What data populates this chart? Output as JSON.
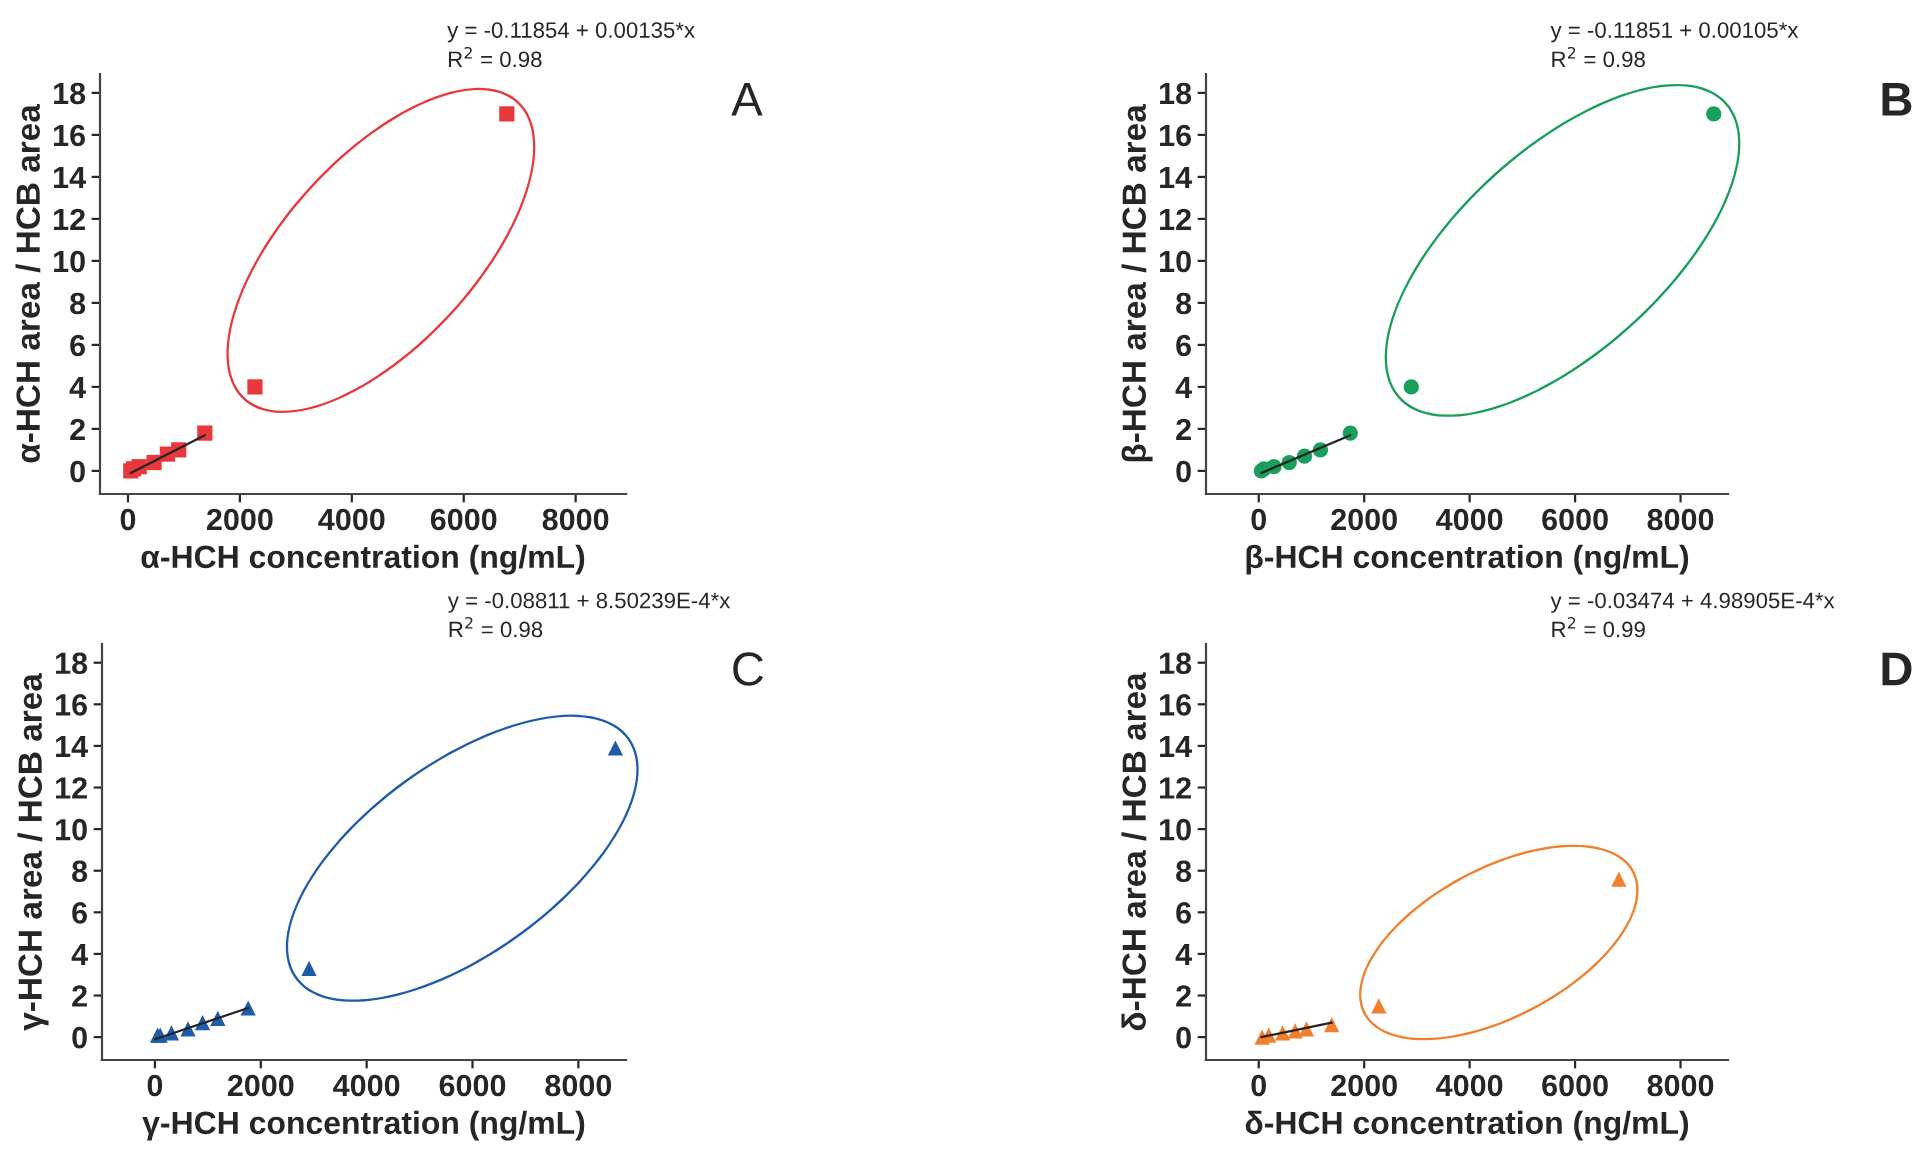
{
  "chart_data": [
    {
      "type": "scatter",
      "xlabel": "α-HCH concentration (ng/mL)",
      "ylabel": "α-HCH area / HCB area",
      "xlim": [
        -500,
        8900
      ],
      "ylim": [
        -1.1,
        18.9
      ],
      "xticks": [
        0,
        2000,
        4000,
        6000,
        8000
      ],
      "yticks": [
        0,
        2,
        4,
        6,
        8,
        10,
        12,
        14,
        16,
        18
      ],
      "grid": false,
      "annotations": [
        "y = -0.11854 + 0.00135*x",
        "R$^{2}$ = 0.98",
        "A"
      ],
      "series": [
        {
          "marker": "square",
          "color": "#e8383d",
          "x": [
            50,
            100,
            200,
            466,
            704,
            907,
            1373,
            2269,
            6770
          ],
          "values": [
            0.0,
            0.1,
            0.2,
            0.4,
            0.8,
            1.0,
            1.8,
            4.0,
            17.0
          ]
        },
        {
          "type": "line",
          "marker": "none",
          "color": "#222222",
          "x": [
            50,
            1373
          ],
          "values": [
            -0.1,
            1.7
          ]
        }
      ]
    },
    {
      "type": "scatter",
      "xlabel": "β-HCH concentration (ng/mL)",
      "ylabel": "β-HCH area / HCB area",
      "xlim": [
        -1000,
        8900
      ],
      "ylim": [
        -1.1,
        18.9
      ],
      "xticks": [
        0,
        2000,
        4000,
        6000,
        8000
      ],
      "yticks": [
        0,
        2,
        4,
        6,
        8,
        10,
        12,
        14,
        16,
        18
      ],
      "grid": false,
      "annotations": [
        "y = -0.11851 + 0.00105*x",
        "R$^{2}$ = 0.98",
        "B"
      ],
      "series": [
        {
          "marker": "circle",
          "color": "#1a9e5c",
          "x": [
            50,
            100,
            289,
            579,
            868,
            1170,
            1736,
            2893,
            8630
          ],
          "values": [
            0.0,
            0.1,
            0.2,
            0.4,
            0.7,
            1.0,
            1.8,
            4.0,
            17.0
          ]
        },
        {
          "type": "line",
          "marker": "none",
          "color": "#222222",
          "x": [
            50,
            1736
          ],
          "values": [
            -0.1,
            1.7
          ]
        }
      ]
    },
    {
      "type": "scatter",
      "xlabel": "γ-HCH concentration (ng/mL)",
      "ylabel": "γ-HCH area / HCB area",
      "xlim": [
        -1000,
        8900
      ],
      "ylim": [
        -1.1,
        18.9
      ],
      "xticks": [
        0,
        2000,
        4000,
        6000,
        8000
      ],
      "yticks": [
        0,
        2,
        4,
        6,
        8,
        10,
        12,
        14,
        16,
        18
      ],
      "grid": false,
      "annotations": [
        "y = -0.08811 + 8.50239E-4*x",
        "R$^{2}$ = 0.98",
        "C"
      ],
      "series": [
        {
          "marker": "triangle",
          "color": "#1f5ca8",
          "x": [
            50,
            100,
            312,
            625,
            900,
            1188,
            1762,
            2912,
            8700
          ],
          "values": [
            0.1,
            0.1,
            0.2,
            0.4,
            0.7,
            0.9,
            1.4,
            3.3,
            13.9
          ]
        },
        {
          "type": "line",
          "marker": "none",
          "color": "#222222",
          "x": [
            0,
            1762
          ],
          "values": [
            -0.1,
            1.4
          ]
        }
      ]
    },
    {
      "type": "scatter",
      "xlabel": "δ-HCH concentration (ng/mL)",
      "ylabel": "δ-HCH area / HCB area",
      "xlim": [
        -1000,
        8900
      ],
      "ylim": [
        -1.1,
        18.9
      ],
      "xticks": [
        0,
        2000,
        4000,
        6000,
        8000
      ],
      "yticks": [
        0,
        2,
        4,
        6,
        8,
        10,
        12,
        14,
        16,
        18
      ],
      "grid": false,
      "annotations": [
        "y = -0.03474 + 4.98905E-4*x",
        "R$^{2}$ = 0.99",
        "D"
      ],
      "series": [
        {
          "marker": "triangle",
          "color": "#f07f2e",
          "x": [
            63,
            189,
            453,
            692,
            906,
            1384,
            2277,
            6830
          ],
          "values": [
            0.0,
            0.1,
            0.2,
            0.3,
            0.4,
            0.6,
            1.5,
            7.6
          ]
        },
        {
          "type": "line",
          "marker": "none",
          "color": "#222222",
          "x": [
            50,
            1384
          ],
          "values": [
            0.0,
            0.7
          ]
        }
      ]
    }
  ]
}
